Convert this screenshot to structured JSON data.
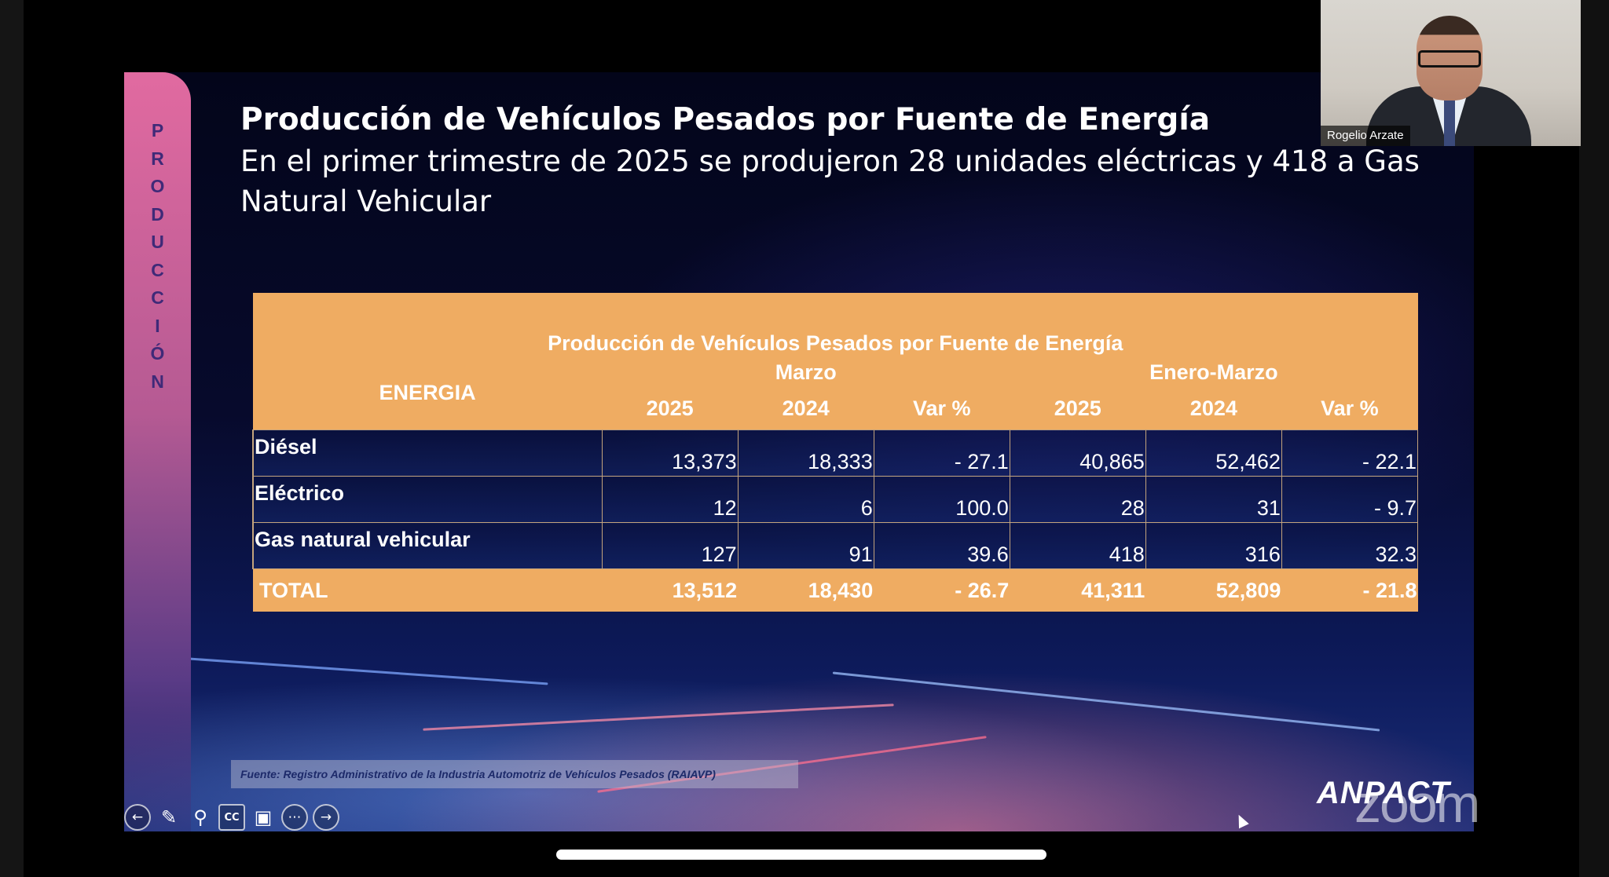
{
  "slide": {
    "side_label": [
      "P",
      "R",
      "O",
      "D",
      "U",
      "C",
      "C",
      "I",
      "Ó",
      "N"
    ],
    "title": "Producción de Vehículos Pesados por Fuente de Energía",
    "subtitle": "En el primer trimestre de 2025 se produjeron 28 unidades eléctricas y 418 a Gas Natural Vehicular",
    "source": "Fuente: Registro Administrativo de la Industria Automotriz de Vehículos Pesados (RAIAVP)",
    "logo": "ANPACT"
  },
  "table": {
    "title": "Producción de Vehículos Pesados por Fuente de Energía",
    "energia_header": "ENERGIA",
    "group_marzo": "Marzo",
    "group_enero_marzo": "Enero-Marzo",
    "columns": [
      "2025",
      "2024",
      "Var %",
      "2025",
      "2024",
      "Var %"
    ],
    "rows": [
      {
        "label": "Diésel",
        "values": [
          "13,373",
          "18,333",
          "- 27.1",
          "40,865",
          "52,462",
          "- 22.1"
        ]
      },
      {
        "label": "Eléctrico",
        "values": [
          "12",
          "6",
          "100.0",
          "28",
          "31",
          "- 9.7"
        ]
      },
      {
        "label": "Gas natural vehicular",
        "values": [
          "127",
          "91",
          "39.6",
          "418",
          "316",
          "32.3"
        ]
      }
    ],
    "total": {
      "label": "TOTAL",
      "values": [
        "13,512",
        "18,430",
        "- 26.7",
        "41,311",
        "52,809",
        "- 21.8"
      ]
    }
  },
  "video": {
    "participant_name": "Rogelio Arzate",
    "watermark": "zoom"
  },
  "toolbar_icons": [
    "back-arrow-icon",
    "pen-icon",
    "zoom-icon",
    "captions-icon",
    "camera-icon",
    "more-icon",
    "forward-arrow-icon"
  ],
  "toolbar_labels": {
    "cc": "CC"
  },
  "colors": {
    "table_header": "#efac62",
    "side_band": "#e16aa0",
    "slide_bg": "#070a2c"
  }
}
